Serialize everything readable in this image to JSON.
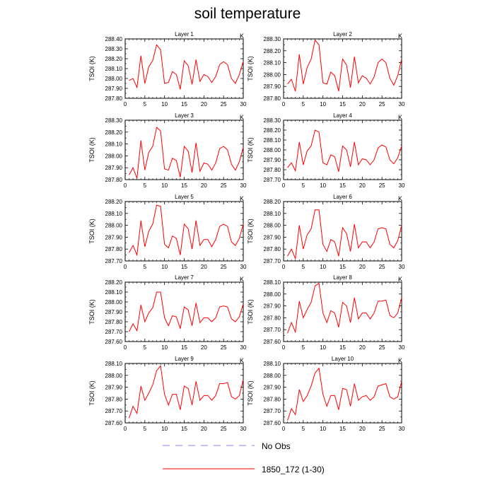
{
  "title": "soil temperature",
  "ylabel": "TSOI  (K)",
  "units": "K",
  "legend": [
    {
      "label": "No Obs",
      "color": "#8080ff",
      "dash": true
    },
    {
      "label": "1850_172 (1-30)",
      "color": "#ff0000",
      "dash": false
    }
  ],
  "chart_data": [
    {
      "type": "line",
      "title": "Layer 1",
      "x": [
        1,
        2,
        3,
        4,
        5,
        6,
        7,
        8,
        9,
        10,
        11,
        12,
        13,
        14,
        15,
        16,
        17,
        18,
        19,
        20,
        21,
        22,
        23,
        24,
        25,
        26,
        27,
        28,
        29,
        30
      ],
      "series": [
        {
          "name": "1850_172 (1-30)",
          "values": [
            287.98,
            288.0,
            287.91,
            288.23,
            287.95,
            288.12,
            288.18,
            288.34,
            288.29,
            287.95,
            287.96,
            288.07,
            288.04,
            287.89,
            288.18,
            288.13,
            287.94,
            288.19,
            287.97,
            288.04,
            288.02,
            287.96,
            288.02,
            288.14,
            288.17,
            288.14,
            288.0,
            287.95,
            288.04,
            288.17
          ],
          "color": "#ff0000"
        }
      ],
      "xlim": [
        0,
        30
      ],
      "ylim": [
        287.8,
        288.4
      ],
      "yticks": [
        287.8,
        287.9,
        288.0,
        288.1,
        288.2,
        288.3,
        288.4
      ],
      "xticks": [
        0,
        5,
        10,
        15,
        20,
        25,
        30
      ]
    },
    {
      "type": "line",
      "title": "Layer 2",
      "x": [
        1,
        2,
        3,
        4,
        5,
        6,
        7,
        8,
        9,
        10,
        11,
        12,
        13,
        14,
        15,
        16,
        17,
        18,
        19,
        20,
        21,
        22,
        23,
        24,
        25,
        26,
        27,
        28,
        29,
        30
      ],
      "series": [
        {
          "name": "1850_172 (1-30)",
          "values": [
            287.92,
            287.96,
            287.86,
            288.17,
            287.92,
            288.06,
            288.13,
            288.29,
            288.25,
            287.93,
            287.92,
            288.02,
            287.99,
            287.86,
            288.13,
            288.08,
            287.89,
            288.15,
            287.93,
            287.99,
            287.97,
            287.92,
            287.98,
            288.1,
            288.13,
            288.1,
            287.97,
            287.91,
            287.99,
            288.13
          ],
          "color": "#ff0000"
        }
      ],
      "xlim": [
        0,
        30
      ],
      "ylim": [
        287.8,
        288.3
      ],
      "yticks": [
        287.8,
        287.9,
        288.0,
        288.1,
        288.2,
        288.3
      ],
      "xticks": [
        0,
        5,
        10,
        15,
        20,
        25,
        30
      ]
    },
    {
      "type": "line",
      "title": "Layer 3",
      "x": [
        1,
        2,
        3,
        4,
        5,
        6,
        7,
        8,
        9,
        10,
        11,
        12,
        13,
        14,
        15,
        16,
        17,
        18,
        19,
        20,
        21,
        22,
        23,
        24,
        25,
        26,
        27,
        28,
        29,
        30
      ],
      "series": [
        {
          "name": "1850_172 (1-30)",
          "values": [
            287.84,
            287.9,
            287.81,
            288.13,
            287.88,
            288.03,
            288.08,
            288.24,
            288.21,
            287.89,
            287.88,
            287.98,
            287.96,
            287.82,
            288.08,
            288.04,
            287.86,
            288.11,
            287.87,
            287.94,
            287.93,
            287.88,
            287.94,
            288.06,
            288.08,
            288.05,
            287.93,
            287.88,
            287.95,
            288.07
          ],
          "color": "#ff0000"
        }
      ],
      "xlim": [
        0,
        30
      ],
      "ylim": [
        287.8,
        288.3
      ],
      "yticks": [
        287.8,
        287.9,
        288.0,
        288.1,
        288.2,
        288.3
      ],
      "xticks": [
        0,
        5,
        10,
        15,
        20,
        25,
        30
      ]
    },
    {
      "type": "line",
      "title": "Layer 4",
      "x": [
        1,
        2,
        3,
        4,
        5,
        6,
        7,
        8,
        9,
        10,
        11,
        12,
        13,
        14,
        15,
        16,
        17,
        18,
        19,
        20,
        21,
        22,
        23,
        24,
        25,
        26,
        27,
        28,
        29,
        30
      ],
      "series": [
        {
          "name": "1850_172 (1-30)",
          "values": [
            287.82,
            287.87,
            287.79,
            288.08,
            287.85,
            287.99,
            288.04,
            288.2,
            288.18,
            287.87,
            287.85,
            287.95,
            287.93,
            287.78,
            288.04,
            288.0,
            287.83,
            288.08,
            287.85,
            287.91,
            287.9,
            287.85,
            287.9,
            288.02,
            288.05,
            288.03,
            287.9,
            287.86,
            287.92,
            288.04
          ],
          "color": "#ff0000"
        }
      ],
      "xlim": [
        0,
        30
      ],
      "ylim": [
        287.7,
        288.3
      ],
      "yticks": [
        287.7,
        287.8,
        287.9,
        288.0,
        288.1,
        288.2,
        288.3
      ],
      "xticks": [
        0,
        5,
        10,
        15,
        20,
        25,
        30
      ]
    },
    {
      "type": "line",
      "title": "Layer 5",
      "x": [
        1,
        2,
        3,
        4,
        5,
        6,
        7,
        8,
        9,
        10,
        11,
        12,
        13,
        14,
        15,
        16,
        17,
        18,
        19,
        20,
        21,
        22,
        23,
        24,
        25,
        26,
        27,
        28,
        29,
        30
      ],
      "series": [
        {
          "name": "1850_172 (1-30)",
          "values": [
            287.77,
            287.83,
            287.75,
            288.04,
            287.82,
            287.95,
            288.01,
            288.17,
            288.16,
            287.84,
            287.81,
            287.91,
            287.89,
            287.75,
            288.01,
            287.97,
            287.8,
            288.04,
            287.83,
            287.88,
            287.88,
            287.82,
            287.88,
            287.99,
            288.01,
            287.99,
            287.86,
            287.83,
            287.89,
            288.01
          ],
          "color": "#ff0000"
        }
      ],
      "xlim": [
        0,
        30
      ],
      "ylim": [
        287.7,
        288.2
      ],
      "yticks": [
        287.7,
        287.8,
        287.9,
        288.0,
        288.1,
        288.2
      ],
      "xticks": [
        0,
        5,
        10,
        15,
        20,
        25,
        30
      ]
    },
    {
      "type": "line",
      "title": "Layer 6",
      "x": [
        1,
        2,
        3,
        4,
        5,
        6,
        7,
        8,
        9,
        10,
        11,
        12,
        13,
        14,
        15,
        16,
        17,
        18,
        19,
        20,
        21,
        22,
        23,
        24,
        25,
        26,
        27,
        28,
        29,
        30
      ],
      "series": [
        {
          "name": "1850_172 (1-30)",
          "values": [
            287.74,
            287.8,
            287.72,
            288.0,
            287.8,
            287.92,
            287.97,
            288.13,
            288.13,
            287.84,
            287.78,
            287.88,
            287.86,
            287.74,
            287.98,
            287.93,
            287.78,
            288.01,
            287.81,
            287.86,
            287.86,
            287.81,
            287.86,
            287.97,
            287.98,
            287.97,
            287.84,
            287.81,
            287.87,
            288.0
          ],
          "color": "#ff0000"
        }
      ],
      "xlim": [
        0,
        30
      ],
      "ylim": [
        287.7,
        288.2
      ],
      "yticks": [
        287.7,
        287.8,
        287.9,
        288.0,
        288.1,
        288.2
      ],
      "xticks": [
        0,
        5,
        10,
        15,
        20,
        25,
        30
      ]
    },
    {
      "type": "line",
      "title": "Layer 7",
      "x": [
        1,
        2,
        3,
        4,
        5,
        6,
        7,
        8,
        9,
        10,
        11,
        12,
        13,
        14,
        15,
        16,
        17,
        18,
        19,
        20,
        21,
        22,
        23,
        24,
        25,
        26,
        27,
        28,
        29,
        30
      ],
      "series": [
        {
          "name": "1850_172 (1-30)",
          "values": [
            287.7,
            287.78,
            287.71,
            287.97,
            287.8,
            287.89,
            287.94,
            288.1,
            288.1,
            287.84,
            287.76,
            287.86,
            287.85,
            287.73,
            287.95,
            287.92,
            287.76,
            287.99,
            287.79,
            287.84,
            287.84,
            287.8,
            287.84,
            287.95,
            287.96,
            287.95,
            287.83,
            287.8,
            287.85,
            287.98
          ],
          "color": "#ff0000"
        }
      ],
      "xlim": [
        0,
        30
      ],
      "ylim": [
        287.6,
        288.2
      ],
      "yticks": [
        287.6,
        287.7,
        287.8,
        287.9,
        288.0,
        288.1,
        288.2
      ],
      "xticks": [
        0,
        5,
        10,
        15,
        20,
        25,
        30
      ]
    },
    {
      "type": "line",
      "title": "Layer 8",
      "x": [
        1,
        2,
        3,
        4,
        5,
        6,
        7,
        8,
        9,
        10,
        11,
        12,
        13,
        14,
        15,
        16,
        17,
        18,
        19,
        20,
        21,
        22,
        23,
        24,
        25,
        26,
        27,
        28,
        29,
        30
      ],
      "series": [
        {
          "name": "1850_172 (1-30)",
          "values": [
            287.67,
            287.76,
            287.68,
            287.94,
            287.8,
            287.87,
            287.93,
            288.07,
            288.09,
            287.84,
            287.76,
            287.86,
            287.84,
            287.72,
            287.93,
            287.9,
            287.76,
            287.97,
            287.79,
            287.84,
            287.84,
            287.79,
            287.84,
            287.94,
            287.94,
            287.95,
            287.82,
            287.8,
            287.84,
            287.97
          ],
          "color": "#ff0000"
        }
      ],
      "xlim": [
        0,
        30
      ],
      "ylim": [
        287.6,
        288.1
      ],
      "yticks": [
        287.6,
        287.7,
        287.8,
        287.9,
        288.0,
        288.1
      ],
      "xticks": [
        0,
        5,
        10,
        15,
        20,
        25,
        30
      ]
    },
    {
      "type": "line",
      "title": "Layer 9",
      "x": [
        1,
        2,
        3,
        4,
        5,
        6,
        7,
        8,
        9,
        10,
        11,
        12,
        13,
        14,
        15,
        16,
        17,
        18,
        19,
        20,
        21,
        22,
        23,
        24,
        25,
        26,
        27,
        28,
        29,
        30
      ],
      "series": [
        {
          "name": "1850_172 (1-30)",
          "values": [
            287.64,
            287.74,
            287.68,
            287.91,
            287.79,
            287.85,
            287.92,
            288.04,
            288.08,
            287.84,
            287.75,
            287.84,
            287.84,
            287.71,
            287.91,
            287.89,
            287.75,
            287.95,
            287.79,
            287.83,
            287.83,
            287.79,
            287.83,
            287.93,
            287.93,
            287.94,
            287.82,
            287.8,
            287.83,
            287.96
          ],
          "color": "#ff0000"
        }
      ],
      "xlim": [
        0,
        30
      ],
      "ylim": [
        287.6,
        288.1
      ],
      "yticks": [
        287.6,
        287.7,
        287.8,
        287.9,
        288.0,
        288.1
      ],
      "xticks": [
        0,
        5,
        10,
        15,
        20,
        25,
        30
      ]
    },
    {
      "type": "line",
      "title": "Layer 10",
      "x": [
        1,
        2,
        3,
        4,
        5,
        6,
        7,
        8,
        9,
        10,
        11,
        12,
        13,
        14,
        15,
        16,
        17,
        18,
        19,
        20,
        21,
        22,
        23,
        24,
        25,
        26,
        27,
        28,
        29,
        30
      ],
      "series": [
        {
          "name": "1850_172 (1-30)",
          "values": [
            287.62,
            287.72,
            287.67,
            287.88,
            287.78,
            287.83,
            287.91,
            288.02,
            288.06,
            287.84,
            287.74,
            287.83,
            287.83,
            287.71,
            287.89,
            287.88,
            287.74,
            287.93,
            287.79,
            287.82,
            287.83,
            287.79,
            287.82,
            287.91,
            287.92,
            287.93,
            287.82,
            287.8,
            287.82,
            287.95
          ],
          "color": "#ff0000"
        }
      ],
      "xlim": [
        0,
        30
      ],
      "ylim": [
        287.6,
        288.1
      ],
      "yticks": [
        287.6,
        287.7,
        287.8,
        287.9,
        288.0,
        288.1
      ],
      "xticks": [
        0,
        5,
        10,
        15,
        20,
        25,
        30
      ]
    }
  ]
}
